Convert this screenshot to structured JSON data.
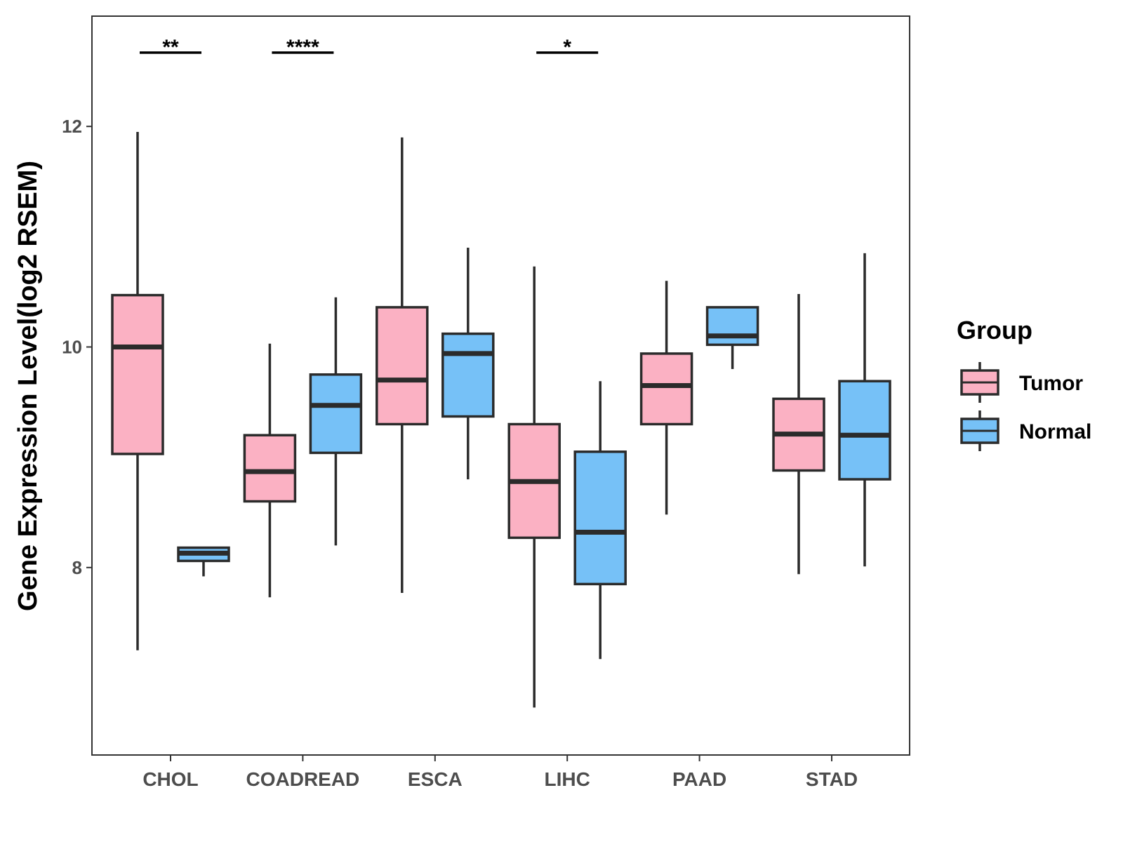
{
  "chart_data": {
    "type": "boxplot",
    "title": "",
    "xlabel": "",
    "ylabel": "Gene Expression Level(log2 RSEM)",
    "ylim": [
      6.3,
      13.0
    ],
    "yticks": [
      8,
      10,
      12
    ],
    "ytick_labels": [
      "8",
      "10",
      "12"
    ],
    "categories": [
      "CHOL",
      "COADREAD",
      "ESCA",
      "LIHC",
      "PAAD",
      "STAD"
    ],
    "legend": {
      "title": "Group",
      "position": "right",
      "entries": [
        "Tumor",
        "Normal"
      ]
    },
    "colors": {
      "Tumor": "#FBB1C3",
      "Normal": "#76C1F7",
      "stroke": "#2b2b2b"
    },
    "series": [
      {
        "name": "Tumor",
        "boxes": [
          {
            "category": "CHOL",
            "whisker_low": 7.25,
            "q1": 9.03,
            "median": 10.0,
            "q3": 10.47,
            "whisker_high": 11.95
          },
          {
            "category": "COADREAD",
            "whisker_low": 7.73,
            "q1": 8.6,
            "median": 8.87,
            "q3": 9.2,
            "whisker_high": 10.03
          },
          {
            "category": "ESCA",
            "whisker_low": 7.77,
            "q1": 9.3,
            "median": 9.7,
            "q3": 10.36,
            "whisker_high": 11.9
          },
          {
            "category": "LIHC",
            "whisker_low": 6.73,
            "q1": 8.27,
            "median": 8.78,
            "q3": 9.3,
            "whisker_high": 10.73
          },
          {
            "category": "PAAD",
            "whisker_low": 8.48,
            "q1": 9.3,
            "median": 9.65,
            "q3": 9.94,
            "whisker_high": 10.6
          },
          {
            "category": "STAD",
            "whisker_low": 7.94,
            "q1": 8.88,
            "median": 9.21,
            "q3": 9.53,
            "whisker_high": 10.48
          }
        ]
      },
      {
        "name": "Normal",
        "boxes": [
          {
            "category": "CHOL",
            "whisker_low": 7.92,
            "q1": 8.06,
            "median": 8.13,
            "q3": 8.18,
            "whisker_high": 8.18
          },
          {
            "category": "COADREAD",
            "whisker_low": 8.2,
            "q1": 9.04,
            "median": 9.47,
            "q3": 9.75,
            "whisker_high": 10.45
          },
          {
            "category": "ESCA",
            "whisker_low": 8.8,
            "q1": 9.37,
            "median": 9.94,
            "q3": 10.12,
            "whisker_high": 10.9
          },
          {
            "category": "LIHC",
            "whisker_low": 7.17,
            "q1": 7.85,
            "median": 8.32,
            "q3": 9.05,
            "whisker_high": 9.69
          },
          {
            "category": "PAAD",
            "whisker_low": 9.8,
            "q1": 10.02,
            "median": 10.1,
            "q3": 10.36,
            "whisker_high": 10.36
          },
          {
            "category": "STAD",
            "whisker_low": 8.01,
            "q1": 8.8,
            "median": 9.2,
            "q3": 9.69,
            "whisker_high": 10.85
          }
        ]
      }
    ],
    "significance": [
      {
        "category": "CHOL",
        "label": "**"
      },
      {
        "category": "COADREAD",
        "label": "****"
      },
      {
        "category": "LIHC",
        "label": "*"
      }
    ]
  }
}
